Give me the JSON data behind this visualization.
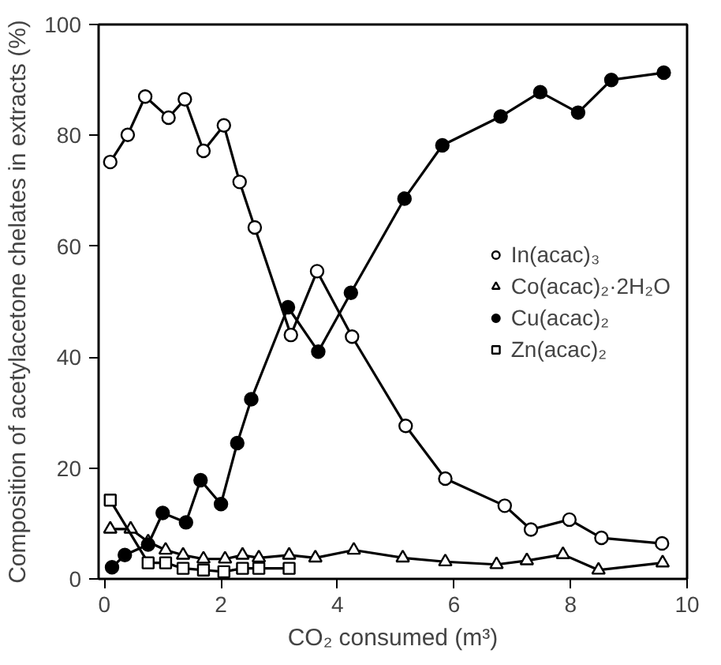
{
  "chart_data": {
    "type": "line",
    "xlabel": "CO₂ consumed (m³)",
    "ylabel": "Composition of acetylacetone chelates in extracts (%)",
    "xlim": [
      -0.1,
      10
    ],
    "ylim": [
      0,
      100
    ],
    "xticks": [
      0,
      2,
      4,
      6,
      8,
      10
    ],
    "yticks": [
      0,
      20,
      40,
      60,
      80,
      100
    ],
    "grid": false,
    "legend": "right",
    "line_style": "solid",
    "series": [
      {
        "name": "In(acac)₃",
        "color": "#000000",
        "marker": "circle",
        "colors": [
          "#ffffff",
          "#ffffff",
          "#ffffff",
          "#ffffff",
          "#ffffff",
          "#ffffff",
          "#ffffff",
          "#ffffff",
          "#ffffff",
          "#ffffff",
          "#ffffff",
          "#ffffff",
          "#ffffff",
          "#ffffff",
          "#ffffff",
          "#ffffff",
          "#ffffff",
          "#ffffff",
          "#ffffff"
        ],
        "x": [
          0.1,
          0.4,
          0.7,
          1.1,
          1.38,
          1.7,
          2.05,
          2.32,
          2.58,
          3.2,
          3.65,
          4.25,
          5.17,
          5.85,
          6.87,
          7.32,
          7.98,
          8.53,
          9.57
        ],
        "values": [
          75.2,
          80.1,
          87,
          83.2,
          86.5,
          77.2,
          81.8,
          71.6,
          63.4,
          44,
          55.5,
          43.7,
          27.6,
          18.1,
          13.2,
          8.9,
          10.7,
          7.4,
          6.4
        ]
      },
      {
        "name": "Co(acac)₂·2H₂O",
        "color": "#000000",
        "marker": "triangle",
        "colors": [
          "#ffffff",
          "#ffffff",
          "#ffffff",
          "#ffffff",
          "#ffffff",
          "#ffffff",
          "#ffffff",
          "#ffffff",
          "#ffffff",
          "#ffffff",
          "#ffffff",
          "#ffffff",
          "#ffffff",
          "#ffffff",
          "#ffffff",
          "#ffffff",
          "#ffffff",
          "#ffffff",
          "#ffffff"
        ],
        "x": [
          0.1,
          0.45,
          0.75,
          1.05,
          1.35,
          1.7,
          2.07,
          2.37,
          2.65,
          3.17,
          3.62,
          4.28,
          5.12,
          5.85,
          6.73,
          7.25,
          7.87,
          8.48,
          9.58
        ],
        "values": [
          9,
          9,
          6.7,
          5.2,
          4.3,
          3.6,
          3.6,
          4.3,
          3.8,
          4.3,
          3.8,
          5.2,
          3.8,
          3.1,
          2.6,
          3.3,
          4.4,
          1.6,
          2.9
        ]
      },
      {
        "name": "Cu(acac)₂",
        "color": "#000000",
        "marker": "circle",
        "x": [
          0.13,
          0.35,
          0.75,
          1.0,
          1.4,
          1.65,
          2.0,
          2.28,
          2.52,
          3.15,
          3.67,
          4.23,
          5.15,
          5.8,
          6.8,
          7.48,
          8.13,
          8.7,
          9.6
        ],
        "values": [
          2.1,
          4.3,
          6.2,
          11.9,
          10.2,
          17.8,
          13.5,
          24.5,
          32.4,
          49,
          41,
          51.6,
          68.6,
          78.2,
          83.4,
          87.8,
          84.1,
          90,
          91.3
        ]
      },
      {
        "name": "Zn(acac)₂",
        "color": "#000000",
        "marker": "square",
        "colors": [
          "#ffffff",
          "#ffffff",
          "#ffffff",
          "#ffffff",
          "#ffffff",
          "#ffffff",
          "#ffffff",
          "#ffffff",
          "#ffffff"
        ],
        "x": [
          0.1,
          0.75,
          1.05,
          1.35,
          1.7,
          2.05,
          2.37,
          2.65,
          3.17
        ],
        "values": [
          14.2,
          2.9,
          2.9,
          1.9,
          1.6,
          1.3,
          1.9,
          1.9,
          1.9
        ]
      }
    ]
  }
}
